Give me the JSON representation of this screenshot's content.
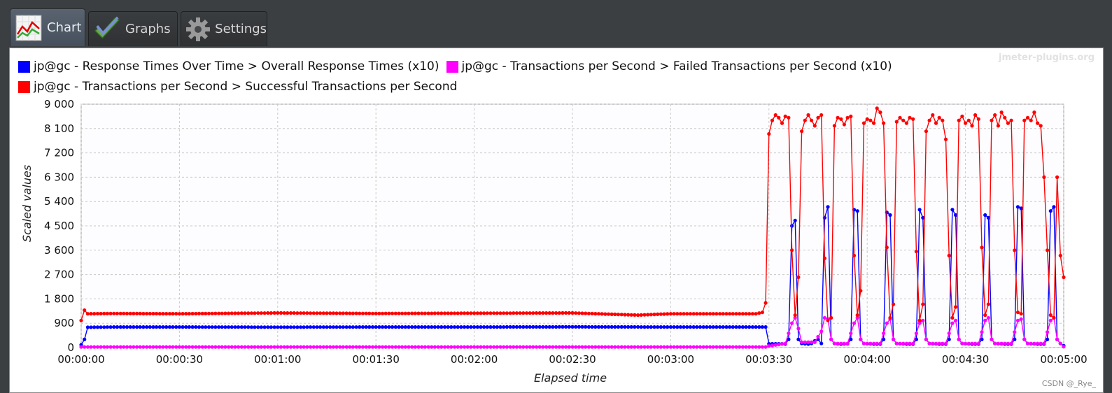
{
  "tabs": [
    {
      "label": "Chart",
      "icon": "line-chart-icon",
      "active": true
    },
    {
      "label": "Graphs",
      "icon": "checkmark-icon",
      "active": false
    },
    {
      "label": "Settings",
      "icon": "gear-icon",
      "active": false
    }
  ],
  "watermark": "jmeter-plugins.org",
  "footer_credit": "CSDN @_Rye_",
  "colors": {
    "response_times": "#0000ff",
    "failed_tps": "#ff00ff",
    "successful_tps": "#ff0000",
    "grid": "#c8c8c8",
    "plot_background": "#fdfdff"
  },
  "chart_data": {
    "type": "line",
    "xlabel": "Elapsed time",
    "ylabel": "Scaled values",
    "ylim": [
      0,
      9000
    ],
    "yticks": [
      "0",
      "900",
      "1 800",
      "2 700",
      "3 600",
      "4 500",
      "5 400",
      "6 300",
      "7 200",
      "8 100",
      "9 000"
    ],
    "xlim_seconds": [
      0,
      300
    ],
    "xticks": [
      "00:00:00",
      "00:00:30",
      "00:01:00",
      "00:01:30",
      "00:02:00",
      "00:02:30",
      "00:03:00",
      "00:03:30",
      "00:04:00",
      "00:04:30",
      "00:05:00"
    ],
    "grid": true,
    "legend_placement": "top",
    "series": [
      {
        "name": "jp@gc - Response Times Over Time > Overall Response Times (x10)",
        "color": "#0000ff",
        "values": [
          [
            0,
            100
          ],
          [
            1,
            300
          ],
          [
            2,
            750
          ],
          [
            10,
            760
          ],
          [
            30,
            760
          ],
          [
            60,
            755
          ],
          [
            90,
            760
          ],
          [
            120,
            760
          ],
          [
            150,
            765
          ],
          [
            180,
            760
          ],
          [
            204,
            760
          ],
          [
            209,
            760
          ],
          [
            210,
            140
          ],
          [
            214,
            140
          ],
          [
            215,
            130
          ],
          [
            216,
            300
          ],
          [
            217,
            4500
          ],
          [
            218,
            4700
          ],
          [
            219,
            300
          ],
          [
            220,
            150
          ],
          [
            222,
            130
          ],
          [
            223,
            150
          ],
          [
            224,
            250
          ],
          [
            225,
            300
          ],
          [
            226,
            150
          ],
          [
            227,
            4800
          ],
          [
            228,
            5200
          ],
          [
            229,
            300
          ],
          [
            230,
            150
          ],
          [
            232,
            130
          ],
          [
            234,
            140
          ],
          [
            235,
            300
          ],
          [
            236,
            5100
          ],
          [
            237,
            5050
          ],
          [
            238,
            300
          ],
          [
            239,
            150
          ],
          [
            242,
            130
          ],
          [
            244,
            130
          ],
          [
            245,
            300
          ],
          [
            246,
            5000
          ],
          [
            247,
            4900
          ],
          [
            248,
            300
          ],
          [
            249,
            150
          ],
          [
            252,
            130
          ],
          [
            254,
            130
          ],
          [
            255,
            300
          ],
          [
            256,
            5100
          ],
          [
            257,
            4800
          ],
          [
            258,
            300
          ],
          [
            259,
            150
          ],
          [
            262,
            130
          ],
          [
            264,
            130
          ],
          [
            265,
            300
          ],
          [
            266,
            5100
          ],
          [
            267,
            4900
          ],
          [
            268,
            300
          ],
          [
            269,
            150
          ],
          [
            272,
            130
          ],
          [
            274,
            130
          ],
          [
            275,
            300
          ],
          [
            276,
            4900
          ],
          [
            277,
            4800
          ],
          [
            278,
            300
          ],
          [
            279,
            150
          ],
          [
            282,
            130
          ],
          [
            284,
            130
          ],
          [
            285,
            300
          ],
          [
            286,
            5200
          ],
          [
            287,
            5150
          ],
          [
            288,
            300
          ],
          [
            289,
            150
          ],
          [
            292,
            130
          ],
          [
            294,
            130
          ],
          [
            295,
            300
          ],
          [
            296,
            5050
          ],
          [
            297,
            5200
          ],
          [
            298,
            300
          ],
          [
            299,
            150
          ],
          [
            300,
            70
          ]
        ]
      },
      {
        "name": "jp@gc - Transactions per Second > Failed Transactions per Second (x10)",
        "color": "#ff00ff",
        "values": [
          [
            0,
            20
          ],
          [
            30,
            20
          ],
          [
            60,
            20
          ],
          [
            90,
            20
          ],
          [
            120,
            20
          ],
          [
            150,
            20
          ],
          [
            180,
            20
          ],
          [
            209,
            20
          ],
          [
            210,
            60
          ],
          [
            215,
            150
          ],
          [
            217,
            900
          ],
          [
            218,
            1100
          ],
          [
            219,
            700
          ],
          [
            220,
            200
          ],
          [
            224,
            200
          ],
          [
            226,
            600
          ],
          [
            227,
            1100
          ],
          [
            228,
            1050
          ],
          [
            229,
            300
          ],
          [
            230,
            150
          ],
          [
            234,
            150
          ],
          [
            236,
            900
          ],
          [
            237,
            1100
          ],
          [
            238,
            300
          ],
          [
            239,
            150
          ],
          [
            244,
            150
          ],
          [
            246,
            900
          ],
          [
            247,
            1050
          ],
          [
            248,
            300
          ],
          [
            249,
            150
          ],
          [
            254,
            150
          ],
          [
            256,
            900
          ],
          [
            257,
            1000
          ],
          [
            258,
            300
          ],
          [
            259,
            150
          ],
          [
            264,
            150
          ],
          [
            266,
            900
          ],
          [
            267,
            1000
          ],
          [
            268,
            300
          ],
          [
            269,
            150
          ],
          [
            274,
            150
          ],
          [
            276,
            1000
          ],
          [
            277,
            1100
          ],
          [
            278,
            300
          ],
          [
            279,
            150
          ],
          [
            284,
            150
          ],
          [
            286,
            1000
          ],
          [
            287,
            1050
          ],
          [
            288,
            300
          ],
          [
            289,
            150
          ],
          [
            294,
            150
          ],
          [
            296,
            1000
          ],
          [
            297,
            1100
          ],
          [
            298,
            300
          ],
          [
            299,
            150
          ],
          [
            300,
            30
          ]
        ]
      },
      {
        "name": "jp@gc - Transactions per Second > Successful Transactions per Second",
        "color": "#ff0000",
        "values": [
          [
            0,
            1000
          ],
          [
            1,
            1380
          ],
          [
            2,
            1250
          ],
          [
            10,
            1260
          ],
          [
            30,
            1250
          ],
          [
            60,
            1280
          ],
          [
            90,
            1260
          ],
          [
            120,
            1270
          ],
          [
            150,
            1280
          ],
          [
            170,
            1200
          ],
          [
            180,
            1250
          ],
          [
            206,
            1250
          ],
          [
            208,
            1300
          ],
          [
            209,
            1650
          ],
          [
            210,
            7900
          ],
          [
            211,
            8400
          ],
          [
            212,
            8600
          ],
          [
            213,
            8500
          ],
          [
            214,
            8300
          ],
          [
            215,
            8550
          ],
          [
            216,
            8500
          ],
          [
            217,
            3600
          ],
          [
            218,
            1200
          ],
          [
            219,
            2600
          ],
          [
            220,
            8000
          ],
          [
            221,
            8400
          ],
          [
            222,
            8600
          ],
          [
            223,
            8400
          ],
          [
            224,
            8200
          ],
          [
            225,
            8500
          ],
          [
            226,
            8600
          ],
          [
            227,
            3300
          ],
          [
            228,
            1000
          ],
          [
            229,
            1100
          ],
          [
            230,
            8200
          ],
          [
            231,
            8500
          ],
          [
            232,
            8450
          ],
          [
            233,
            8250
          ],
          [
            234,
            8500
          ],
          [
            235,
            8550
          ],
          [
            236,
            3400
          ],
          [
            237,
            1200
          ],
          [
            238,
            2100
          ],
          [
            239,
            8300
          ],
          [
            240,
            8450
          ],
          [
            241,
            8400
          ],
          [
            242,
            8300
          ],
          [
            243,
            8850
          ],
          [
            244,
            8700
          ],
          [
            245,
            8300
          ],
          [
            246,
            3700
          ],
          [
            247,
            1100
          ],
          [
            248,
            1600
          ],
          [
            249,
            8350
          ],
          [
            250,
            8500
          ],
          [
            251,
            8400
          ],
          [
            252,
            8300
          ],
          [
            253,
            8500
          ],
          [
            254,
            8450
          ],
          [
            255,
            3550
          ],
          [
            256,
            1000
          ],
          [
            257,
            1600
          ],
          [
            258,
            8000
          ],
          [
            259,
            8400
          ],
          [
            260,
            8600
          ],
          [
            261,
            8300
          ],
          [
            262,
            8500
          ],
          [
            263,
            8400
          ],
          [
            264,
            7700
          ],
          [
            265,
            3400
          ],
          [
            266,
            1100
          ],
          [
            267,
            1500
          ],
          [
            268,
            8400
          ],
          [
            269,
            8550
          ],
          [
            270,
            8300
          ],
          [
            271,
            8400
          ],
          [
            272,
            8200
          ],
          [
            273,
            8600
          ],
          [
            274,
            8450
          ],
          [
            275,
            3700
          ],
          [
            276,
            1200
          ],
          [
            277,
            1600
          ],
          [
            278,
            8400
          ],
          [
            279,
            8600
          ],
          [
            280,
            8200
          ],
          [
            281,
            8700
          ],
          [
            282,
            8500
          ],
          [
            283,
            8300
          ],
          [
            284,
            8400
          ],
          [
            285,
            3600
          ],
          [
            286,
            1300
          ],
          [
            287,
            1250
          ],
          [
            288,
            8400
          ],
          [
            289,
            8500
          ],
          [
            290,
            8400
          ],
          [
            291,
            8700
          ],
          [
            292,
            8300
          ],
          [
            293,
            8200
          ],
          [
            294,
            6300
          ],
          [
            295,
            3600
          ],
          [
            296,
            1200
          ],
          [
            297,
            1100
          ],
          [
            298,
            6300
          ],
          [
            299,
            3400
          ],
          [
            300,
            2600
          ]
        ]
      }
    ]
  }
}
